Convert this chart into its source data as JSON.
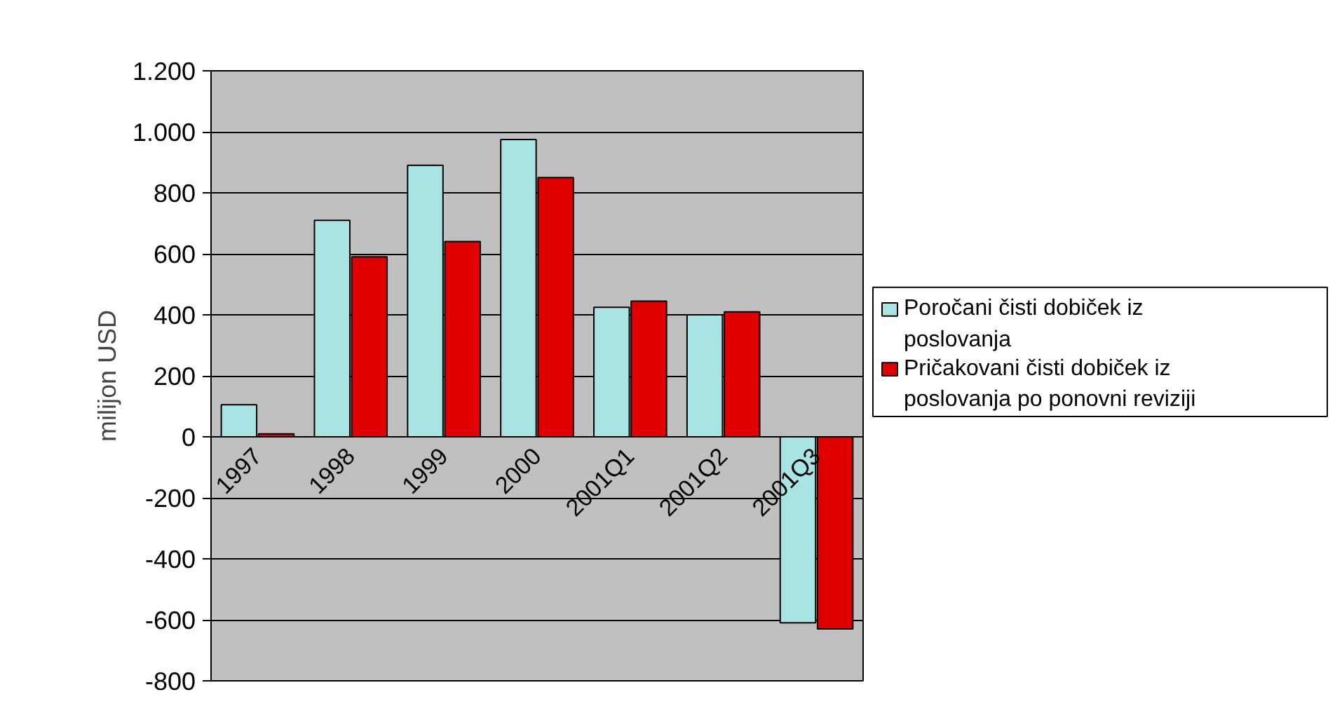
{
  "chart_data": {
    "type": "bar",
    "ylabel": "milijon USD",
    "categories": [
      "1997",
      "1998",
      "1999",
      "2000",
      "2001Q1",
      "2001Q2",
      "2001Q3"
    ],
    "series": [
      {
        "name": "Poročani čisti dobiček iz poslovanja",
        "color": "#a8e4e4",
        "values": [
          105,
          710,
          890,
          975,
          425,
          400,
          -610
        ]
      },
      {
        "name": "Pričakovani čisti dobiček iz poslovanja po ponovni reviziji",
        "color": "#e00000",
        "values": [
          10,
          590,
          640,
          850,
          445,
          410,
          -630
        ]
      }
    ],
    "ylim": [
      -800,
      1200
    ],
    "yticks": [
      {
        "value": -800,
        "label": "-800"
      },
      {
        "value": -600,
        "label": "-600"
      },
      {
        "value": -400,
        "label": "-400"
      },
      {
        "value": -200,
        "label": "-200"
      },
      0,
      200,
      400,
      600,
      800,
      {
        "value": 1000,
        "label": "1.000"
      },
      {
        "value": 1200,
        "label": "1.200"
      }
    ],
    "grid": "y",
    "legend": "right"
  }
}
